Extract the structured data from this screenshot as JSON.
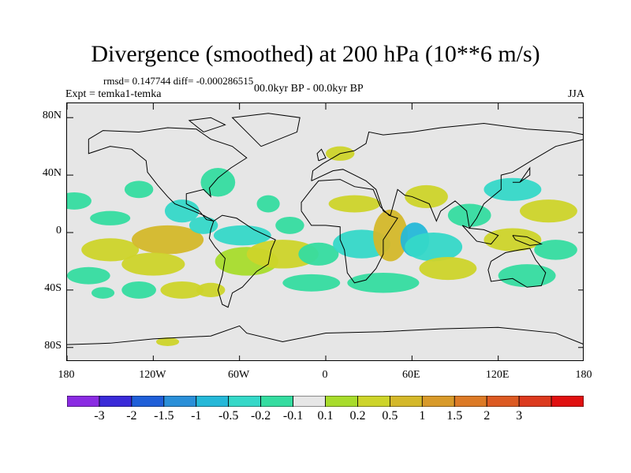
{
  "title": "Divergence (smoothed) at 200 hPa (10**6 m/s)",
  "stats": "rmsd= 0.147744 diff= -0.000286515",
  "expt": "Expt = temka1-temka",
  "period": "00.0kyr BP - 00.0kyr BP",
  "season": "JJA",
  "y_axis": {
    "labels": [
      "80N",
      "40N",
      "0",
      "40S",
      "80S"
    ],
    "values": [
      80,
      40,
      0,
      -40,
      -80
    ]
  },
  "x_axis": {
    "labels": [
      "180",
      "120W",
      "60W",
      "0",
      "60E",
      "120E",
      "180"
    ],
    "values": [
      -180,
      -120,
      -60,
      0,
      60,
      120,
      180
    ]
  },
  "colorbar": {
    "colors": [
      "#8a2be2",
      "#3a2ad8",
      "#1f5fd8",
      "#2a8fd8",
      "#25b8d8",
      "#35d8c8",
      "#35dca0",
      "#e6e6e6",
      "#a8dc2c",
      "#cdd42a",
      "#d4b82a",
      "#d89a2a",
      "#dc7a26",
      "#dc5a22",
      "#dc3a1e",
      "#e01010"
    ],
    "labels": [
      "-3",
      "-2",
      "-1.5",
      "-1",
      "-0.5",
      "-0.2",
      "-0.1",
      "0.1",
      "0.2",
      "0.5",
      "1",
      "1.5",
      "2",
      "3"
    ]
  },
  "field_blobs": [
    {
      "lon": -175,
      "lat": 22,
      "rlon": 12,
      "rlat": 6,
      "c": 6
    },
    {
      "lon": -150,
      "lat": 10,
      "rlon": 14,
      "rlat": 5,
      "c": 6
    },
    {
      "lon": -130,
      "lat": 30,
      "rlon": 10,
      "rlat": 6,
      "c": 6
    },
    {
      "lon": -150,
      "lat": -12,
      "rlon": 20,
      "rlat": 8,
      "c": 9
    },
    {
      "lon": -110,
      "lat": -5,
      "rlon": 25,
      "rlat": 10,
      "c": 10
    },
    {
      "lon": -120,
      "lat": -22,
      "rlon": 22,
      "rlat": 8,
      "c": 9
    },
    {
      "lon": -165,
      "lat": -30,
      "rlon": 15,
      "rlat": 6,
      "c": 6
    },
    {
      "lon": -100,
      "lat": 15,
      "rlon": 12,
      "rlat": 8,
      "c": 5
    },
    {
      "lon": -85,
      "lat": 5,
      "rlon": 10,
      "rlat": 6,
      "c": 5
    },
    {
      "lon": -75,
      "lat": 35,
      "rlon": 12,
      "rlat": 10,
      "c": 6
    },
    {
      "lon": -58,
      "lat": -2,
      "rlon": 20,
      "rlat": 7,
      "c": 5
    },
    {
      "lon": -55,
      "lat": -20,
      "rlon": 22,
      "rlat": 10,
      "c": 8
    },
    {
      "lon": -30,
      "lat": -15,
      "rlon": 25,
      "rlat": 10,
      "c": 9
    },
    {
      "lon": -25,
      "lat": 5,
      "rlon": 10,
      "rlat": 6,
      "c": 6
    },
    {
      "lon": -40,
      "lat": 20,
      "rlon": 8,
      "rlat": 6,
      "c": 6
    },
    {
      "lon": -5,
      "lat": -15,
      "rlon": 14,
      "rlat": 8,
      "c": 6
    },
    {
      "lon": 25,
      "lat": -8,
      "rlon": 20,
      "rlat": 10,
      "c": 5
    },
    {
      "lon": 20,
      "lat": 20,
      "rlon": 18,
      "rlat": 6,
      "c": 9
    },
    {
      "lon": 45,
      "lat": -2,
      "rlon": 12,
      "rlat": 18,
      "c": 10
    },
    {
      "lon": 62,
      "lat": -5,
      "rlon": 10,
      "rlat": 12,
      "c": 4
    },
    {
      "lon": 75,
      "lat": -10,
      "rlon": 20,
      "rlat": 10,
      "c": 5
    },
    {
      "lon": 85,
      "lat": -25,
      "rlon": 20,
      "rlat": 8,
      "c": 9
    },
    {
      "lon": 70,
      "lat": 25,
      "rlon": 15,
      "rlat": 8,
      "c": 9
    },
    {
      "lon": 100,
      "lat": 12,
      "rlon": 15,
      "rlat": 8,
      "c": 6
    },
    {
      "lon": 130,
      "lat": 30,
      "rlon": 20,
      "rlat": 8,
      "c": 5
    },
    {
      "lon": 155,
      "lat": 15,
      "rlon": 20,
      "rlat": 8,
      "c": 9
    },
    {
      "lon": 130,
      "lat": -5,
      "rlon": 20,
      "rlat": 8,
      "c": 9
    },
    {
      "lon": 160,
      "lat": -12,
      "rlon": 15,
      "rlat": 7,
      "c": 6
    },
    {
      "lon": 140,
      "lat": -30,
      "rlon": 20,
      "rlat": 8,
      "c": 6
    },
    {
      "lon": 40,
      "lat": -35,
      "rlon": 25,
      "rlat": 7,
      "c": 6
    },
    {
      "lon": -10,
      "lat": -35,
      "rlon": 20,
      "rlat": 6,
      "c": 6
    },
    {
      "lon": 10,
      "lat": 55,
      "rlon": 10,
      "rlat": 5,
      "c": 9
    },
    {
      "lon": -100,
      "lat": -40,
      "rlon": 15,
      "rlat": 6,
      "c": 9
    },
    {
      "lon": -80,
      "lat": -40,
      "rlon": 10,
      "rlat": 5,
      "c": 9
    },
    {
      "lon": -130,
      "lat": -40,
      "rlon": 12,
      "rlat": 6,
      "c": 6
    },
    {
      "lon": -155,
      "lat": -42,
      "rlon": 8,
      "rlat": 4,
      "c": 6
    },
    {
      "lon": -110,
      "lat": -76,
      "rlon": 8,
      "rlat": 3,
      "c": 9
    }
  ]
}
